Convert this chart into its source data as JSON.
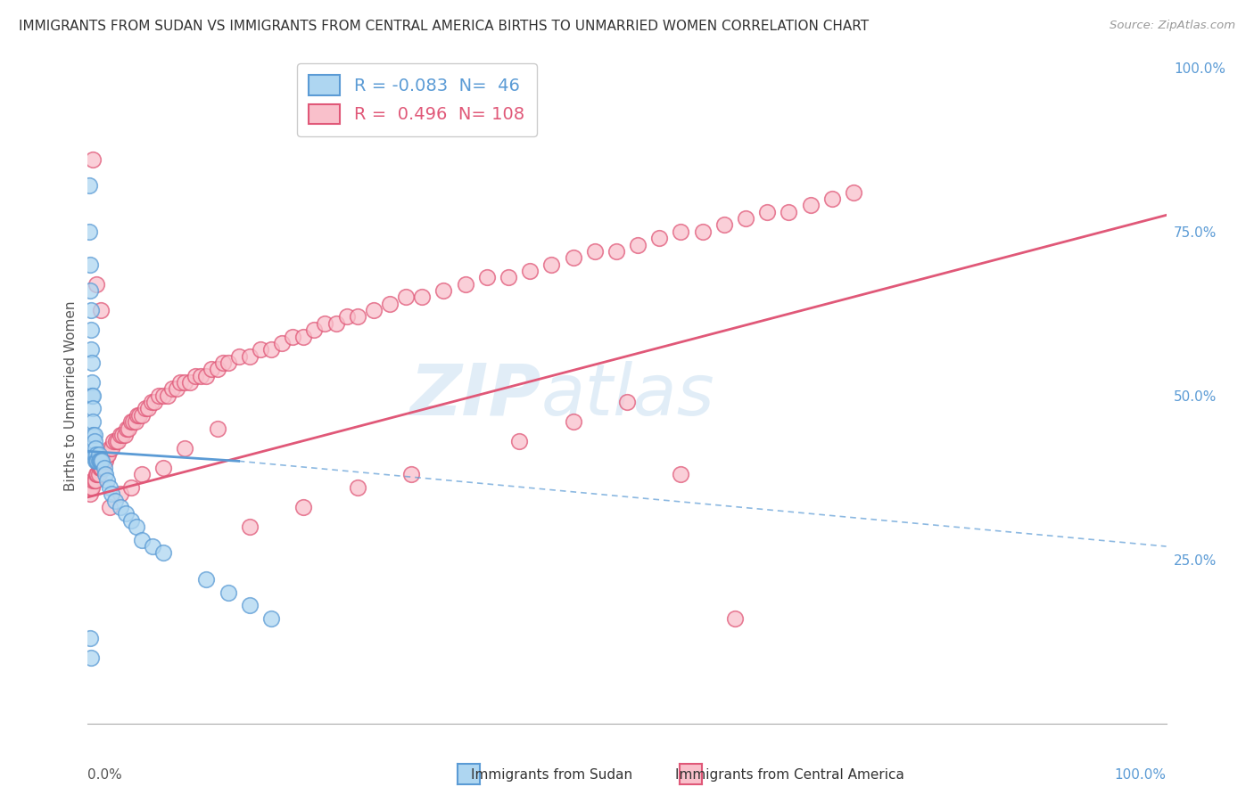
{
  "title": "IMMIGRANTS FROM SUDAN VS IMMIGRANTS FROM CENTRAL AMERICA BIRTHS TO UNMARRIED WOMEN CORRELATION CHART",
  "source": "Source: ZipAtlas.com",
  "ylabel": "Births to Unmarried Women",
  "watermark": "ZIPatlas",
  "legend_sudan": {
    "R": -0.083,
    "N": 46,
    "color": "#aed6f1",
    "line_color": "#5b9bd5"
  },
  "legend_ca": {
    "R": 0.496,
    "N": 108,
    "color": "#f9c0cb",
    "line_color": "#e05878"
  },
  "xlim": [
    0.0,
    1.0
  ],
  "ylim": [
    0.0,
    1.0
  ],
  "background_color": "#ffffff",
  "grid_color": "#cccccc",
  "sudan_x": [
    0.001,
    0.001,
    0.002,
    0.002,
    0.003,
    0.003,
    0.003,
    0.004,
    0.004,
    0.004,
    0.005,
    0.005,
    0.005,
    0.005,
    0.006,
    0.006,
    0.006,
    0.007,
    0.007,
    0.008,
    0.008,
    0.009,
    0.01,
    0.01,
    0.011,
    0.012,
    0.013,
    0.015,
    0.016,
    0.018,
    0.02,
    0.022,
    0.025,
    0.03,
    0.035,
    0.04,
    0.045,
    0.05,
    0.06,
    0.07,
    0.11,
    0.13,
    0.15,
    0.17,
    0.002,
    0.003
  ],
  "sudan_y": [
    0.82,
    0.75,
    0.7,
    0.66,
    0.63,
    0.6,
    0.57,
    0.55,
    0.52,
    0.5,
    0.5,
    0.48,
    0.46,
    0.44,
    0.44,
    0.43,
    0.41,
    0.42,
    0.4,
    0.41,
    0.4,
    0.4,
    0.41,
    0.4,
    0.4,
    0.4,
    0.4,
    0.39,
    0.38,
    0.37,
    0.36,
    0.35,
    0.34,
    0.33,
    0.32,
    0.31,
    0.3,
    0.28,
    0.27,
    0.26,
    0.22,
    0.2,
    0.18,
    0.16,
    0.13,
    0.1
  ],
  "ca_x": [
    0.002,
    0.003,
    0.004,
    0.005,
    0.006,
    0.007,
    0.008,
    0.009,
    0.01,
    0.011,
    0.012,
    0.013,
    0.014,
    0.015,
    0.016,
    0.017,
    0.018,
    0.019,
    0.02,
    0.022,
    0.024,
    0.026,
    0.028,
    0.03,
    0.032,
    0.034,
    0.036,
    0.038,
    0.04,
    0.042,
    0.044,
    0.046,
    0.048,
    0.05,
    0.053,
    0.056,
    0.059,
    0.062,
    0.066,
    0.07,
    0.074,
    0.078,
    0.082,
    0.086,
    0.09,
    0.095,
    0.1,
    0.105,
    0.11,
    0.115,
    0.12,
    0.125,
    0.13,
    0.14,
    0.15,
    0.16,
    0.17,
    0.18,
    0.19,
    0.2,
    0.21,
    0.22,
    0.23,
    0.24,
    0.25,
    0.265,
    0.28,
    0.295,
    0.31,
    0.33,
    0.35,
    0.37,
    0.39,
    0.41,
    0.43,
    0.45,
    0.47,
    0.49,
    0.51,
    0.53,
    0.55,
    0.57,
    0.59,
    0.61,
    0.63,
    0.65,
    0.67,
    0.69,
    0.71,
    0.005,
    0.008,
    0.012,
    0.02,
    0.03,
    0.04,
    0.05,
    0.07,
    0.09,
    0.12,
    0.15,
    0.2,
    0.25,
    0.3,
    0.4,
    0.45,
    0.5,
    0.55,
    0.6
  ],
  "ca_y": [
    0.35,
    0.36,
    0.36,
    0.37,
    0.37,
    0.37,
    0.38,
    0.38,
    0.38,
    0.39,
    0.39,
    0.39,
    0.4,
    0.4,
    0.4,
    0.41,
    0.41,
    0.41,
    0.42,
    0.42,
    0.43,
    0.43,
    0.43,
    0.44,
    0.44,
    0.44,
    0.45,
    0.45,
    0.46,
    0.46,
    0.46,
    0.47,
    0.47,
    0.47,
    0.48,
    0.48,
    0.49,
    0.49,
    0.5,
    0.5,
    0.5,
    0.51,
    0.51,
    0.52,
    0.52,
    0.52,
    0.53,
    0.53,
    0.53,
    0.54,
    0.54,
    0.55,
    0.55,
    0.56,
    0.56,
    0.57,
    0.57,
    0.58,
    0.59,
    0.59,
    0.6,
    0.61,
    0.61,
    0.62,
    0.62,
    0.63,
    0.64,
    0.65,
    0.65,
    0.66,
    0.67,
    0.68,
    0.68,
    0.69,
    0.7,
    0.71,
    0.72,
    0.72,
    0.73,
    0.74,
    0.75,
    0.75,
    0.76,
    0.77,
    0.78,
    0.78,
    0.79,
    0.8,
    0.81,
    0.86,
    0.67,
    0.63,
    0.33,
    0.35,
    0.36,
    0.38,
    0.39,
    0.42,
    0.45,
    0.3,
    0.33,
    0.36,
    0.38,
    0.43,
    0.46,
    0.49,
    0.38,
    0.16
  ],
  "sudan_line_start_x": 0.0,
  "sudan_line_start_y": 0.415,
  "sudan_line_solid_end_x": 0.14,
  "sudan_line_solid_end_y": 0.4,
  "sudan_line_dash_end_x": 1.0,
  "sudan_line_dash_end_y": 0.27,
  "ca_line_start_x": 0.0,
  "ca_line_start_y": 0.345,
  "ca_line_end_x": 1.0,
  "ca_line_end_y": 0.775
}
